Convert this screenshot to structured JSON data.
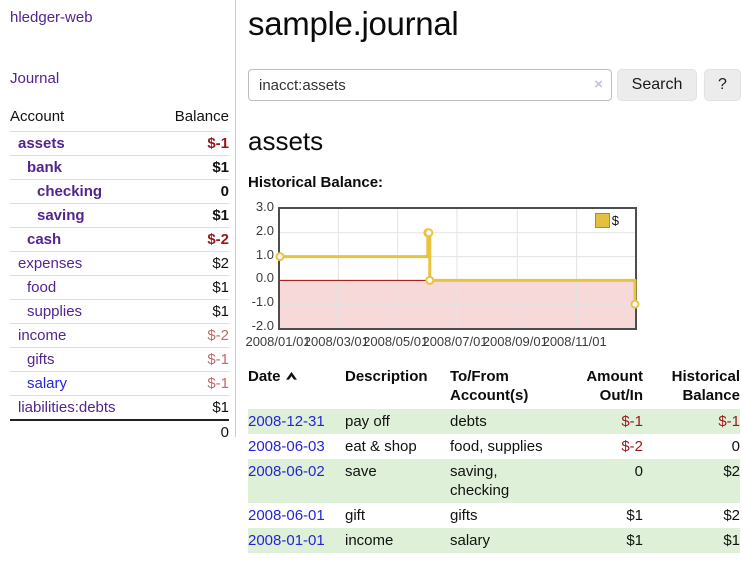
{
  "app": {
    "brand": "hledger-web",
    "nav": {
      "journal": "Journal"
    }
  },
  "sidebar": {
    "columns": {
      "account": "Account",
      "balance": "Balance"
    },
    "rows": [
      {
        "name": "assets",
        "balance": "$-1",
        "depth": 1,
        "bold": true,
        "balance_style": "neg-strong"
      },
      {
        "name": "bank",
        "balance": "$1",
        "depth": 2,
        "bold": true,
        "balance_style": "normal"
      },
      {
        "name": "checking",
        "balance": "0",
        "depth": 3,
        "bold": true,
        "balance_style": "normal"
      },
      {
        "name": "saving",
        "balance": "$1",
        "depth": 3,
        "bold": true,
        "balance_style": "normal"
      },
      {
        "name": "cash",
        "balance": "$-2",
        "depth": 2,
        "bold": true,
        "balance_style": "neg-strong"
      },
      {
        "name": "expenses",
        "balance": "$2",
        "depth": 1,
        "bold": false,
        "balance_style": "normal"
      },
      {
        "name": "food",
        "balance": "$1",
        "depth": 2,
        "bold": false,
        "balance_style": "normal"
      },
      {
        "name": "supplies",
        "balance": "$1",
        "depth": 2,
        "bold": false,
        "balance_style": "normal"
      },
      {
        "name": "income",
        "balance": "$-2",
        "depth": 1,
        "bold": false,
        "balance_style": "neg-soft"
      },
      {
        "name": "gifts",
        "balance": "$-1",
        "depth": 2,
        "bold": false,
        "balance_style": "neg-soft"
      },
      {
        "name": "salary",
        "balance": "$-1",
        "depth": 2,
        "bold": false,
        "balance_style": "neg-soft",
        "link_style": "blue"
      },
      {
        "name": "liabilities:debts",
        "balance": "$1",
        "depth": 1,
        "bold": false,
        "balance_style": "normal"
      }
    ],
    "total": "0"
  },
  "header": {
    "title": "sample.journal"
  },
  "search": {
    "value": "inacct:assets",
    "clear_icon": "×",
    "search_button": "Search",
    "help_button": "?"
  },
  "account_view": {
    "heading": "assets",
    "chart_title": "Historical Balance:"
  },
  "chart_data": {
    "type": "line",
    "step": true,
    "title": "Historical Balance",
    "series": [
      {
        "name": "$",
        "color": "#e9c23f",
        "points": [
          [
            "2008-01-01",
            1
          ],
          [
            "2008-06-01",
            2
          ],
          [
            "2008-06-02",
            2
          ],
          [
            "2008-06-03",
            0
          ],
          [
            "2008-12-31",
            -1
          ]
        ]
      }
    ],
    "xlim": [
      "2008-01-01",
      "2008-12-31"
    ],
    "ylim": [
      -2,
      3
    ],
    "x_ticks": [
      "2008/01/01",
      "2008/03/01",
      "2008/05/01",
      "2008/07/01",
      "2008/09/01",
      "2008/11/01"
    ],
    "y_ticks": [
      "3.0",
      "2.0",
      "1.0",
      "0.0",
      "-1.0",
      "-2.0"
    ],
    "legend": {
      "label": "$",
      "position": "top-right",
      "swatch_color": "#e5bf3f"
    },
    "grid": true,
    "negative_region_color": "#f8d9d9",
    "zero_line_color": "#9c0606"
  },
  "register": {
    "columns": [
      "Date",
      "Description",
      "To/From Account(s)",
      "Amount Out/In",
      "Historical Balance"
    ],
    "sort": {
      "column": "Date",
      "indicator": "up"
    },
    "stripe_color": "#dff0d8",
    "rows": [
      {
        "date": "2008-12-31",
        "description": "pay off",
        "accounts": "debts",
        "amount": "$-1",
        "balance": "$-1"
      },
      {
        "date": "2008-06-03",
        "description": "eat & shop",
        "accounts": "food, supplies",
        "amount": "$-2",
        "balance": "0"
      },
      {
        "date": "2008-06-02",
        "description": "save",
        "accounts": "saving, checking",
        "amount": "0",
        "balance": "$2"
      },
      {
        "date": "2008-06-01",
        "description": "gift",
        "accounts": "gifts",
        "amount": "$1",
        "balance": "$2"
      },
      {
        "date": "2008-01-01",
        "description": "income",
        "accounts": "salary",
        "amount": "$1",
        "balance": "$1"
      }
    ]
  }
}
